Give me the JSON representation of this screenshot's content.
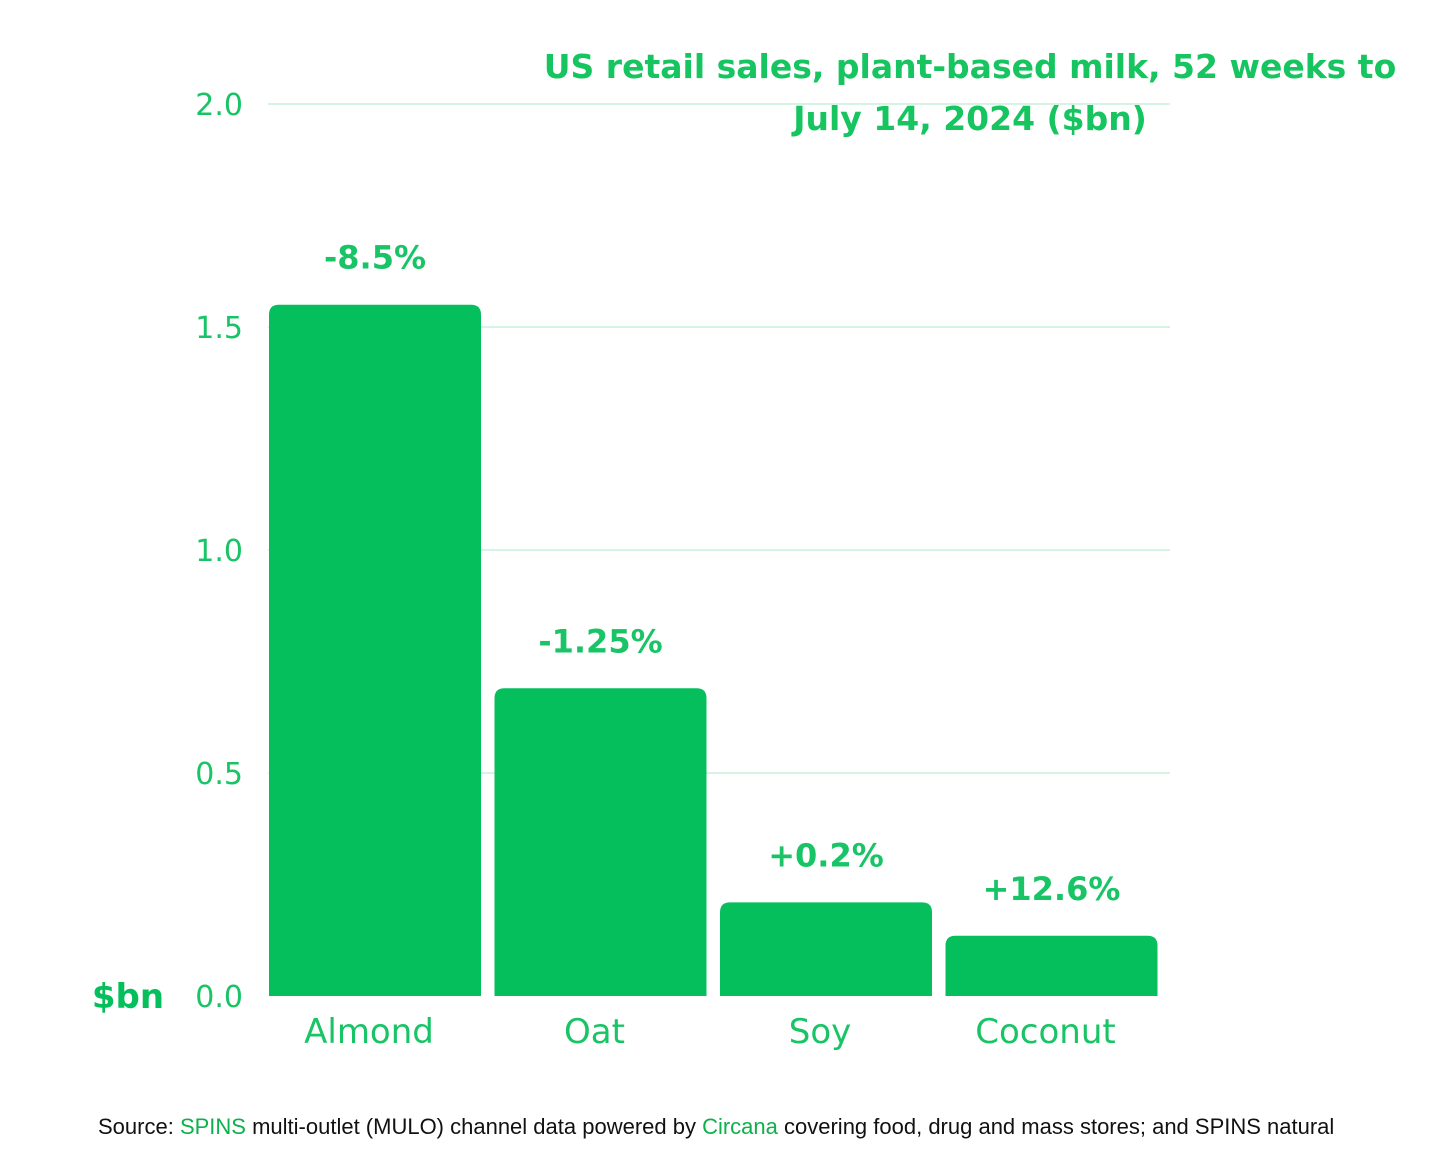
{
  "chart_data": {
    "type": "bar",
    "title": [
      "US retail sales, plant-based milk, 52 weeks to",
      "July 14, 2024 ($bn)"
    ],
    "categories": [
      "Almond",
      "Oat",
      "Soy",
      "Coconut"
    ],
    "values": [
      1.55,
      0.69,
      0.21,
      0.135
    ],
    "data_labels": [
      "-8.5%",
      "-1.25%",
      "+0.2%",
      "+12.6%"
    ],
    "ylabel": "$bn",
    "xlabel": "",
    "ylim": [
      0,
      2.0
    ],
    "yticks": [
      0.0,
      0.5,
      1.0,
      1.5,
      2.0
    ],
    "ytick_labels": [
      "0.0",
      "0.5",
      "1.0",
      "1.5",
      "2.0"
    ],
    "grid": true,
    "legend": "none",
    "colors": {
      "bar": "#05bf5d",
      "text": "#19c466",
      "title": "#16c460",
      "grid": "#c9efda"
    }
  },
  "source": {
    "prefix": "Source: ",
    "link1": "SPINS",
    "mid1": " multi-outlet (MULO) channel data powered by ",
    "link2": "Circana",
    "rest": " covering food, drug and mass stores; and SPINS natural"
  }
}
